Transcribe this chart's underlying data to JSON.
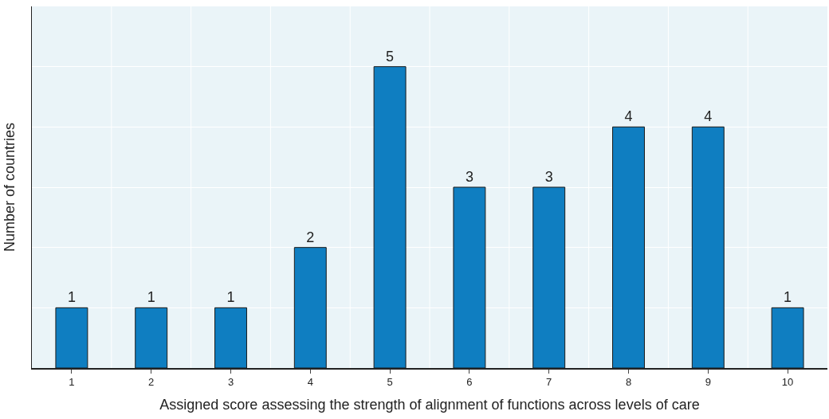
{
  "chart_data": {
    "type": "bar",
    "xlabel": "Assigned score assessing the strength of alignment of functions across levels of care",
    "ylabel": "Number of countries",
    "categories": [
      "1",
      "2",
      "3",
      "4",
      "5",
      "6",
      "7",
      "8",
      "9",
      "10"
    ],
    "values": [
      1,
      1,
      1,
      2,
      5,
      3,
      3,
      4,
      4,
      1
    ],
    "color": "#0f7ec1",
    "data_labels": true,
    "ylim": [
      0,
      6
    ],
    "yticks": [
      {
        "value": 0,
        "label": null
      },
      {
        "value": 1,
        "label": null
      },
      {
        "value": 2,
        "label": null
      },
      {
        "value": 3,
        "label": null
      },
      {
        "value": 4,
        "label": null
      },
      {
        "value": 5,
        "label": null
      },
      {
        "value": 6,
        "label": null
      }
    ],
    "tick_labels": "x",
    "grid": true
  }
}
